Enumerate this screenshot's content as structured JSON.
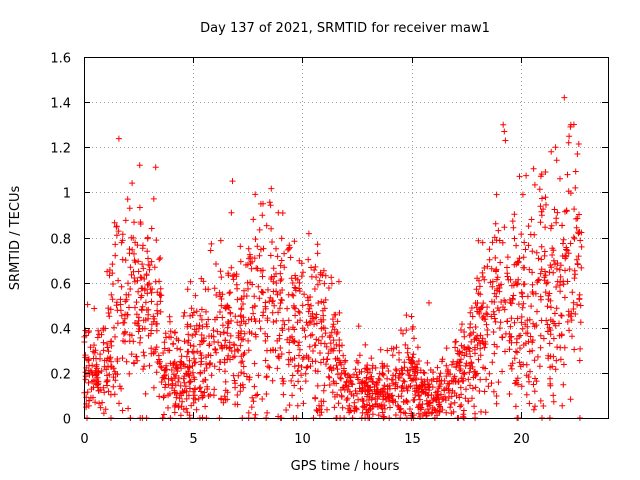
{
  "chart_data": {
    "type": "scatter",
    "title": "Day 137 of 2021, SRMTID for receiver maw1",
    "xlabel": "GPS time / hours",
    "ylabel": "SRMTID / TECUs",
    "xlim": [
      0,
      24
    ],
    "ylim": [
      0,
      1.6
    ],
    "x_ticks": [
      0,
      5,
      10,
      15,
      20
    ],
    "y_ticks": [
      0,
      0.2,
      0.4,
      0.6,
      0.8,
      1,
      1.2,
      1.4,
      1.6
    ],
    "grid": true,
    "marker": "+",
    "marker_color": "#ff0000",
    "series": [
      {
        "name": "SRMTID",
        "profile_x": [
          0,
          0.2,
          0.5,
          0.8,
          1.0,
          1.3,
          1.6,
          2.0,
          2.4,
          2.8,
          3.2,
          3.5,
          3.6,
          4.0,
          4.5,
          5.0,
          5.5,
          6.0,
          6.5,
          7.0,
          7.5,
          8.0,
          8.5,
          9.0,
          9.5,
          10.0,
          10.5,
          11.0,
          11.5,
          12.0,
          12.5,
          13.0,
          13.5,
          14.0,
          14.5,
          15.0,
          15.5,
          16.0,
          16.5,
          17.0,
          17.5,
          18.0,
          18.5,
          19.0,
          19.5,
          20.0,
          20.5,
          21.0,
          21.5,
          22.0,
          22.5,
          22.8
        ],
        "profile_y": [
          0.2,
          0.2,
          0.18,
          0.2,
          0.25,
          0.35,
          0.45,
          0.5,
          0.48,
          0.45,
          0.45,
          0.45,
          0.2,
          0.2,
          0.22,
          0.25,
          0.28,
          0.3,
          0.35,
          0.38,
          0.4,
          0.5,
          0.48,
          0.45,
          0.42,
          0.4,
          0.38,
          0.35,
          0.25,
          0.15,
          0.12,
          0.12,
          0.12,
          0.12,
          0.15,
          0.2,
          0.12,
          0.1,
          0.12,
          0.15,
          0.2,
          0.35,
          0.45,
          0.5,
          0.45,
          0.45,
          0.45,
          0.55,
          0.5,
          0.55,
          0.6,
          0.6
        ],
        "peaks": [
          [
            2.0,
            0.97
          ],
          [
            2.1,
            0.93
          ],
          [
            1.5,
            0.85
          ],
          [
            2.6,
            0.86
          ],
          [
            3.1,
            0.84
          ],
          [
            6.8,
            1.05
          ],
          [
            6.75,
            0.91
          ],
          [
            8.2,
            0.95
          ],
          [
            8.9,
            0.91
          ],
          [
            10.7,
            0.77
          ],
          [
            15.0,
            0.45
          ],
          [
            15.8,
            0.51
          ],
          [
            18.9,
            0.99
          ],
          [
            19.2,
            1.3
          ],
          [
            19.25,
            1.27
          ],
          [
            19.3,
            1.23
          ],
          [
            20.1,
            0.99
          ],
          [
            21.4,
            1.18
          ],
          [
            21.6,
            1.2
          ],
          [
            22.0,
            1.42
          ],
          [
            22.3,
            1.3
          ],
          [
            22.28,
            1.29
          ],
          [
            22.6,
            1.17
          ],
          [
            22.2,
            1.22
          ],
          [
            22.5,
            1.02
          ],
          [
            21.8,
            1.06
          ],
          [
            20.5,
            0.88
          ]
        ]
      }
    ]
  }
}
